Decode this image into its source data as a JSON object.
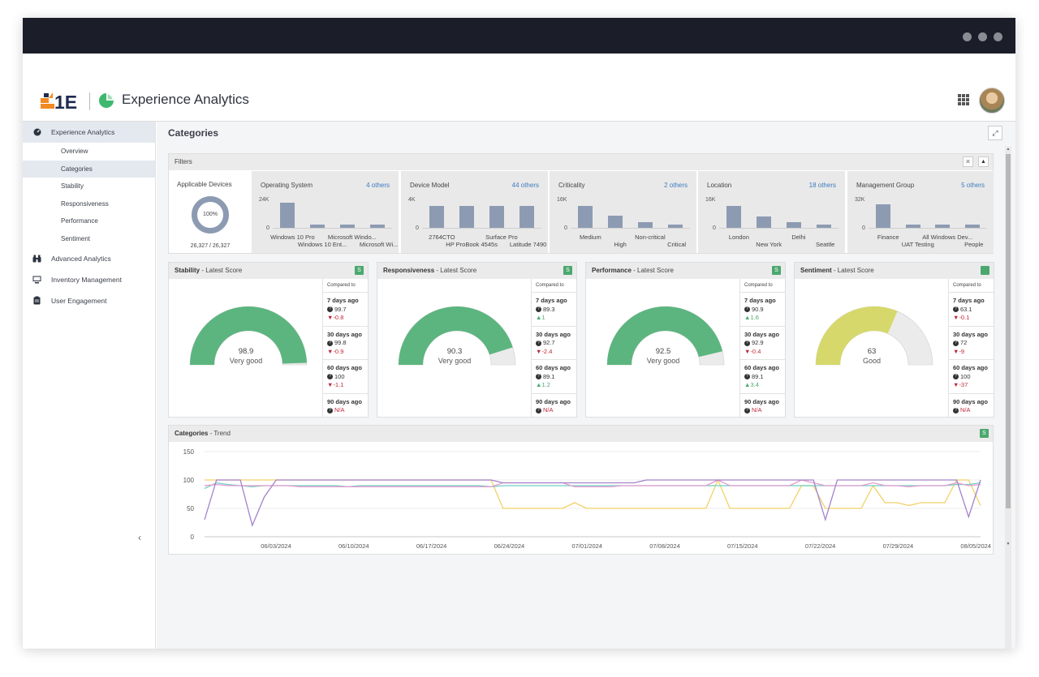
{
  "app": {
    "title": "Experience Analytics"
  },
  "sidebar": {
    "top_item": "Experience Analytics",
    "subitems": [
      "Overview",
      "Categories",
      "Stability",
      "Responsiveness",
      "Performance",
      "Sentiment"
    ],
    "items": [
      "Advanced Analytics",
      "Inventory Management",
      "User Engagement"
    ],
    "collapse_glyph": "‹"
  },
  "page": {
    "title": "Categories",
    "expand_glyph": "⤢"
  },
  "filters": {
    "header": "Filters",
    "applicable_devices": {
      "label": "Applicable Devices",
      "percent": "100%",
      "count": "26,327 / 26,327"
    },
    "cards": [
      {
        "name": "Operating System",
        "others": "4 others",
        "ymax": "24K",
        "ymin": "0",
        "bars": [
          1.0,
          0.14,
          0.14,
          0.14
        ],
        "labels_top": [
          "Windows 10 Pro",
          "Microsoft Windo..."
        ],
        "labels_bottom": [
          "Windows 10 Ent...",
          "Microsoft Wi..."
        ]
      },
      {
        "name": "Device Model",
        "others": "44 others",
        "ymax": "4K",
        "ymin": "0",
        "bars": [
          0.88,
          0.88,
          0.88,
          0.88
        ],
        "labels_top": [
          "2764CTO",
          "Surface Pro"
        ],
        "labels_bottom": [
          "HP ProBook 4545s",
          "Latitude 7490"
        ]
      },
      {
        "name": "Criticality",
        "others": "2 others",
        "ymax": "16K",
        "ymin": "0",
        "bars": [
          0.88,
          0.5,
          0.22,
          0.14
        ],
        "labels_top": [
          "Medium",
          "Non-critical"
        ],
        "labels_bottom": [
          "High",
          "Critical"
        ]
      },
      {
        "name": "Location",
        "others": "18 others",
        "ymax": "16K",
        "ymin": "0",
        "bars": [
          0.88,
          0.44,
          0.22,
          0.14
        ],
        "labels_top": [
          "London",
          "Delhi"
        ],
        "labels_bottom": [
          "New York",
          "Seattle"
        ]
      },
      {
        "name": "Management Group",
        "others": "5 others",
        "ymax": "32K",
        "ymin": "0",
        "bars": [
          0.92,
          0.14,
          0.14,
          0.14
        ],
        "labels_top": [
          "Finance",
          "All Windows Dev..."
        ],
        "labels_bottom": [
          "UAT Testing",
          "People"
        ]
      }
    ]
  },
  "scores": [
    {
      "category": "Stability",
      "suffix": " - Latest Score",
      "badge": "S",
      "value": "98.9",
      "rating": "Very good",
      "fraction": 0.989,
      "color": "#5cb57f",
      "compared_label": "Compared to",
      "rows": [
        {
          "period": "7 days ago",
          "value": "99.7",
          "change": "-0.8",
          "dir": "down"
        },
        {
          "period": "30 days ago",
          "value": "99.8",
          "change": "-0.9",
          "dir": "down"
        },
        {
          "period": "60 days ago",
          "value": "100",
          "change": "-1.1",
          "dir": "down"
        },
        {
          "period": "90 days ago",
          "value": "N/A",
          "change": "",
          "dir": "na"
        }
      ]
    },
    {
      "category": "Responsiveness",
      "suffix": " - Latest Score",
      "badge": "S",
      "value": "90.3",
      "rating": "Very good",
      "fraction": 0.903,
      "color": "#5cb57f",
      "compared_label": "Compared to",
      "rows": [
        {
          "period": "7 days ago",
          "value": "89.3",
          "change": "1",
          "dir": "up"
        },
        {
          "period": "30 days ago",
          "value": "92.7",
          "change": "-2.4",
          "dir": "down"
        },
        {
          "period": "60 days ago",
          "value": "89.1",
          "change": "1.2",
          "dir": "up"
        },
        {
          "period": "90 days ago",
          "value": "N/A",
          "change": "",
          "dir": "na"
        }
      ]
    },
    {
      "category": "Performance",
      "suffix": " - Latest Score",
      "badge": "S",
      "value": "92.5",
      "rating": "Very good",
      "fraction": 0.925,
      "color": "#5cb57f",
      "compared_label": "Compared to",
      "rows": [
        {
          "period": "7 days ago",
          "value": "90.9",
          "change": "1.6",
          "dir": "up"
        },
        {
          "period": "30 days ago",
          "value": "92.9",
          "change": "-0.4",
          "dir": "down"
        },
        {
          "period": "60 days ago",
          "value": "89.1",
          "change": "3.4",
          "dir": "up"
        },
        {
          "period": "90 days ago",
          "value": "N/A",
          "change": "",
          "dir": "na"
        }
      ]
    },
    {
      "category": "Sentiment",
      "suffix": " - Latest Score",
      "badge": "",
      "value": "63",
      "rating": "Good",
      "fraction": 0.63,
      "color": "#d6d86b",
      "compared_label": "Compared to",
      "rows": [
        {
          "period": "7 days ago",
          "value": "63.1",
          "change": "-0.1",
          "dir": "down"
        },
        {
          "period": "30 days ago",
          "value": "72",
          "change": "-9",
          "dir": "down"
        },
        {
          "period": "60 days ago",
          "value": "100",
          "change": "-37",
          "dir": "down"
        },
        {
          "period": "90 days ago",
          "value": "N/A",
          "change": "",
          "dir": "na"
        }
      ]
    }
  ],
  "trend": {
    "category": "Categories",
    "suffix": " - Trend",
    "badge": "S"
  },
  "chart_data": {
    "type": "line",
    "title": "Categories - Trend",
    "ylim": [
      0,
      150
    ],
    "yticks": [
      0,
      50,
      100,
      150
    ],
    "x_tick_labels": [
      "06/03/2024",
      "06/10/2024",
      "06/17/2024",
      "06/24/2024",
      "07/01/2024",
      "07/08/2024",
      "07/15/2024",
      "07/22/2024",
      "07/29/2024",
      "08/05/2024"
    ],
    "x_count": 66,
    "series": [
      {
        "color": "#f2d066",
        "values": [
          100,
          100,
          100,
          100,
          100,
          100,
          100,
          100,
          100,
          100,
          100,
          100,
          100,
          100,
          100,
          100,
          100,
          100,
          100,
          100,
          100,
          100,
          100,
          100,
          100,
          50,
          50,
          50,
          50,
          50,
          50,
          60,
          50,
          50,
          50,
          50,
          50,
          50,
          50,
          50,
          50,
          50,
          50,
          100,
          50,
          50,
          50,
          50,
          50,
          50,
          90,
          90,
          50,
          50,
          50,
          50,
          90,
          60,
          60,
          55,
          60,
          60,
          60,
          100,
          100,
          55
        ]
      },
      {
        "color": "#6fcfbf",
        "values": [
          85,
          95,
          92,
          90,
          88,
          90,
          90,
          90,
          90,
          90,
          90,
          90,
          88,
          90,
          90,
          90,
          90,
          90,
          90,
          90,
          90,
          90,
          90,
          90,
          88,
          90,
          90,
          90,
          90,
          90,
          90,
          90,
          90,
          90,
          90,
          90,
          90,
          90,
          90,
          90,
          90,
          90,
          90,
          90,
          90,
          90,
          90,
          90,
          90,
          90,
          90,
          90,
          90,
          90,
          90,
          90,
          90,
          90,
          90,
          90,
          90,
          90,
          90,
          92,
          92,
          95
        ]
      },
      {
        "color": "#e69ad0",
        "values": [
          90,
          92,
          90,
          90,
          90,
          90,
          90,
          90,
          88,
          88,
          88,
          88,
          88,
          88,
          88,
          88,
          88,
          88,
          88,
          88,
          88,
          88,
          88,
          88,
          88,
          95,
          95,
          95,
          95,
          95,
          95,
          88,
          88,
          88,
          88,
          90,
          90,
          90,
          90,
          90,
          90,
          90,
          90,
          100,
          90,
          90,
          90,
          90,
          90,
          90,
          100,
          95,
          90,
          90,
          90,
          90,
          95,
          90,
          90,
          88,
          90,
          90,
          90,
          95,
          90,
          92
        ]
      },
      {
        "color": "#a382cc",
        "values": [
          30,
          100,
          100,
          100,
          20,
          70,
          100,
          100,
          100,
          100,
          100,
          100,
          100,
          100,
          100,
          100,
          100,
          100,
          100,
          100,
          100,
          100,
          100,
          100,
          100,
          95,
          95,
          95,
          95,
          95,
          95,
          95,
          95,
          95,
          95,
          95,
          95,
          100,
          100,
          100,
          100,
          100,
          100,
          100,
          100,
          100,
          100,
          100,
          100,
          100,
          100,
          100,
          30,
          100,
          100,
          100,
          100,
          100,
          100,
          100,
          100,
          100,
          100,
          100,
          35,
          100
        ]
      }
    ]
  }
}
